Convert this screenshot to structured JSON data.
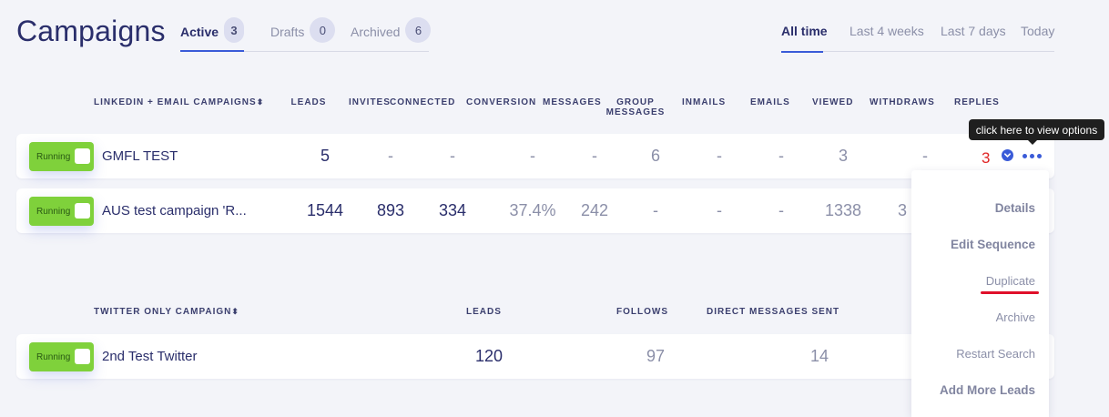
{
  "header": {
    "title": "Campaigns",
    "tabs": [
      {
        "label": "Active",
        "count": "3"
      },
      {
        "label": "Drafts",
        "count": "0"
      },
      {
        "label": "Archived",
        "count": "6"
      }
    ],
    "ranges": [
      "All time",
      "Last 4 weeks",
      "Last 7 days",
      "Today"
    ]
  },
  "linkedin_table": {
    "headers": {
      "name": "LINKEDIN + EMAIL CAMPAIGNS",
      "sort_glyph": "⬍",
      "leads": "LEADS",
      "invites": "INVITES",
      "connected": "CONNECTED",
      "conversion": "CONVERSION",
      "messages": "MESSAGES",
      "group_messages_1": "GROUP",
      "group_messages_2": "MESSAGES",
      "inmails": "INMAILS",
      "emails": "EMAILS",
      "viewed": "VIEWED",
      "withdraws": "WITHDRAWS",
      "replies": "REPLIES"
    },
    "rows": [
      {
        "status": "Running",
        "name": "GMFL TEST",
        "leads": "5",
        "invites": "-",
        "connected": "-",
        "conversion": "-",
        "messages": "-",
        "group_messages": "6",
        "inmails": "-",
        "emails": "-",
        "viewed": "3",
        "withdraws": "-",
        "replies": "3"
      },
      {
        "status": "Running",
        "name": "AUS test campaign 'R...",
        "leads": "1544",
        "invites": "893",
        "connected": "334",
        "conversion": "37.4%",
        "messages": "242",
        "group_messages": "-",
        "inmails": "-",
        "emails": "-",
        "viewed": "1338",
        "withdraws": "3"
      }
    ]
  },
  "twitter_table": {
    "headers": {
      "name": "TWITTER ONLY CAMPAIGN",
      "sort_glyph": "⬍",
      "leads": "LEADS",
      "follows": "FOLLOWS",
      "dms": "DIRECT MESSAGES SENT"
    },
    "rows": [
      {
        "status": "Running",
        "name": "2nd Test Twitter",
        "leads": "120",
        "follows": "97",
        "dms": "14"
      }
    ]
  },
  "tooltip": "click here to view options",
  "options_menu": [
    "Details",
    "Edit Sequence",
    "Duplicate",
    "Archive",
    "Restart Search",
    "Add More Leads"
  ],
  "colors": {
    "accent": "#3a5bd8",
    "running": "#7fd13b",
    "reply_highlight": "#e02525",
    "annotation": "#e0102a"
  },
  "icons": [
    "chevron-down-circle-icon",
    "more-options-icon",
    "sort-icon"
  ]
}
